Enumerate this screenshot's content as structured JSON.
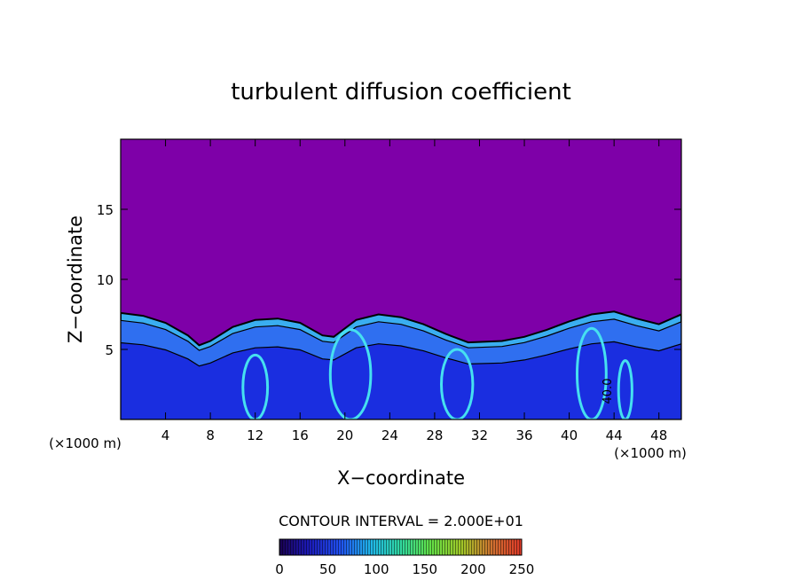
{
  "chart_data": {
    "type": "heatmap",
    "title": "turbulent diffusion coefficient",
    "xlabel": "X−coordinate",
    "ylabel": "Z−coordinate",
    "x_unit_left": "(×1000 m)",
    "x_unit_right": "(×1000 m)",
    "xlim": [
      0,
      50
    ],
    "ylim": [
      0,
      20
    ],
    "x_ticks": [
      4,
      8,
      12,
      16,
      20,
      24,
      28,
      32,
      36,
      40,
      44,
      48
    ],
    "y_ticks": [
      5,
      10,
      15
    ],
    "contour_interval_text": "CONTOUR INTERVAL = 2.000E+01",
    "contour_label": "40.0",
    "colorbar": {
      "min": 0,
      "max": 250,
      "ticks": [
        0,
        50,
        100,
        150,
        200,
        250
      ]
    },
    "background_color": "#7e00a8",
    "field_colors": [
      "#1a2ee0",
      "#2f6ff0",
      "#3aaef0",
      "#46e0f0"
    ],
    "boundary_layer_top_by_x": [
      [
        0,
        7.6
      ],
      [
        2,
        7.4
      ],
      [
        4,
        6.9
      ],
      [
        6,
        6.0
      ],
      [
        7,
        5.3
      ],
      [
        8,
        5.6
      ],
      [
        10,
        6.6
      ],
      [
        12,
        7.1
      ],
      [
        14,
        7.2
      ],
      [
        16,
        6.9
      ],
      [
        18,
        6.0
      ],
      [
        19,
        5.9
      ],
      [
        21,
        7.1
      ],
      [
        23,
        7.5
      ],
      [
        25,
        7.3
      ],
      [
        27,
        6.8
      ],
      [
        29,
        6.1
      ],
      [
        31,
        5.5
      ],
      [
        34,
        5.6
      ],
      [
        36,
        5.9
      ],
      [
        38,
        6.4
      ],
      [
        40,
        7.0
      ],
      [
        42,
        7.5
      ],
      [
        44,
        7.7
      ],
      [
        46,
        7.2
      ],
      [
        48,
        6.8
      ],
      [
        50,
        7.5
      ]
    ]
  }
}
